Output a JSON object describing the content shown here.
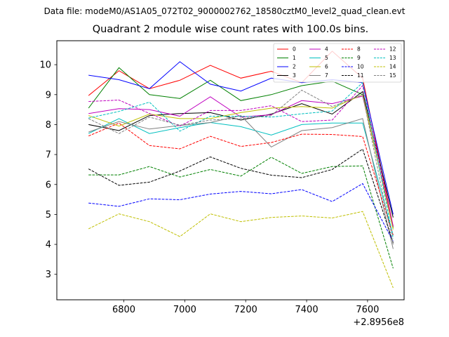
{
  "header": {
    "data_file": "Data file: modeM0/AS1A05_072T02_9000002762_18580cztM0_level2_quad_clean.evt"
  },
  "chart_data": {
    "type": "line",
    "title": "Quadrant 2 module wise count rates with 100.0s bins.",
    "xlabel": "",
    "ylabel": "",
    "x_offset_label": "+2.8956e8",
    "x": [
      6684,
      6784,
      6884,
      6984,
      7084,
      7184,
      7284,
      7384,
      7484,
      7584,
      7684
    ],
    "xlim": [
      6580,
      7720
    ],
    "ylim": [
      2.15,
      10.8
    ],
    "xticks": [
      6800,
      7000,
      7200,
      7400,
      7600
    ],
    "yticks": [
      3,
      4,
      5,
      6,
      7,
      8,
      9,
      10
    ],
    "grid": false,
    "legend_position": "top-right",
    "series": [
      {
        "name": "0",
        "color": "#ff0000",
        "dash": "solid",
        "values": [
          8.97,
          9.8,
          9.2,
          9.48,
          9.98,
          9.55,
          9.78,
          9.4,
          10.45,
          9.55,
          4.6
        ]
      },
      {
        "name": "1",
        "color": "#008000",
        "dash": "solid",
        "values": [
          8.55,
          9.9,
          9.0,
          8.87,
          9.48,
          8.8,
          9.0,
          9.3,
          9.45,
          9.0,
          4.55
        ]
      },
      {
        "name": "2",
        "color": "#0000ff",
        "dash": "solid",
        "values": [
          9.65,
          9.5,
          9.2,
          10.1,
          9.35,
          9.12,
          9.55,
          9.4,
          9.5,
          9.4,
          5.0
        ]
      },
      {
        "name": "3",
        "color": "#000000",
        "dash": "solid",
        "values": [
          8.0,
          7.8,
          8.3,
          8.37,
          8.4,
          8.15,
          8.35,
          8.7,
          8.35,
          9.1,
          4.9
        ]
      },
      {
        "name": "4",
        "color": "#bf00bf",
        "dash": "solid",
        "values": [
          8.37,
          8.53,
          8.5,
          8.28,
          8.93,
          8.25,
          8.33,
          8.8,
          8.7,
          8.95,
          4.6
        ]
      },
      {
        "name": "5",
        "color": "#00bfbf",
        "dash": "solid",
        "values": [
          7.7,
          8.2,
          7.7,
          7.9,
          8.07,
          7.93,
          7.65,
          8.0,
          8.05,
          8.05,
          4.3
        ]
      },
      {
        "name": "6",
        "color": "#bfbf00",
        "dash": "solid",
        "values": [
          8.3,
          7.95,
          8.35,
          8.2,
          8.2,
          8.4,
          8.55,
          8.6,
          8.55,
          9.0,
          4.5
        ]
      },
      {
        "name": "7",
        "color": "#808080",
        "dash": "solid",
        "values": [
          7.75,
          8.1,
          7.85,
          7.97,
          8.07,
          8.3,
          7.25,
          7.8,
          7.9,
          8.2,
          3.85
        ]
      },
      {
        "name": "8",
        "color": "#ff0000",
        "dash": "dashed",
        "values": [
          7.62,
          8.05,
          7.3,
          7.19,
          7.61,
          7.27,
          7.4,
          7.68,
          7.67,
          7.6,
          4.3
        ]
      },
      {
        "name": "9",
        "color": "#008000",
        "dash": "dashed",
        "values": [
          6.32,
          6.32,
          6.6,
          6.25,
          6.5,
          6.28,
          6.91,
          6.37,
          6.6,
          6.62,
          3.2
        ]
      },
      {
        "name": "10",
        "color": "#0000ff",
        "dash": "dashed",
        "values": [
          5.38,
          5.27,
          5.52,
          5.49,
          5.68,
          5.77,
          5.69,
          5.83,
          5.43,
          6.03,
          4.1
        ]
      },
      {
        "name": "11",
        "color": "#000000",
        "dash": "dashed",
        "values": [
          6.52,
          5.97,
          6.08,
          6.45,
          6.92,
          6.54,
          6.31,
          6.23,
          6.5,
          7.18,
          4.05
        ]
      },
      {
        "name": "12",
        "color": "#bf00bf",
        "dash": "dashed",
        "values": [
          8.77,
          8.82,
          8.37,
          7.95,
          8.47,
          8.47,
          8.63,
          8.1,
          8.15,
          9.3,
          4.6
        ]
      },
      {
        "name": "13",
        "color": "#00bfbf",
        "dash": "dashed",
        "values": [
          8.22,
          8.44,
          8.75,
          7.78,
          8.28,
          8.28,
          8.25,
          8.36,
          8.45,
          9.4,
          4.2
        ]
      },
      {
        "name": "14",
        "color": "#bfbf00",
        "dash": "dashed",
        "values": [
          4.52,
          5.02,
          4.76,
          4.26,
          5.02,
          4.76,
          4.9,
          4.95,
          4.88,
          5.1,
          2.55
        ]
      },
      {
        "name": "15",
        "color": "#808080",
        "dash": "dashed",
        "values": [
          8.2,
          7.7,
          8.25,
          7.98,
          8.15,
          8.2,
          8.3,
          9.15,
          8.6,
          9.0,
          4.0
        ]
      }
    ]
  }
}
